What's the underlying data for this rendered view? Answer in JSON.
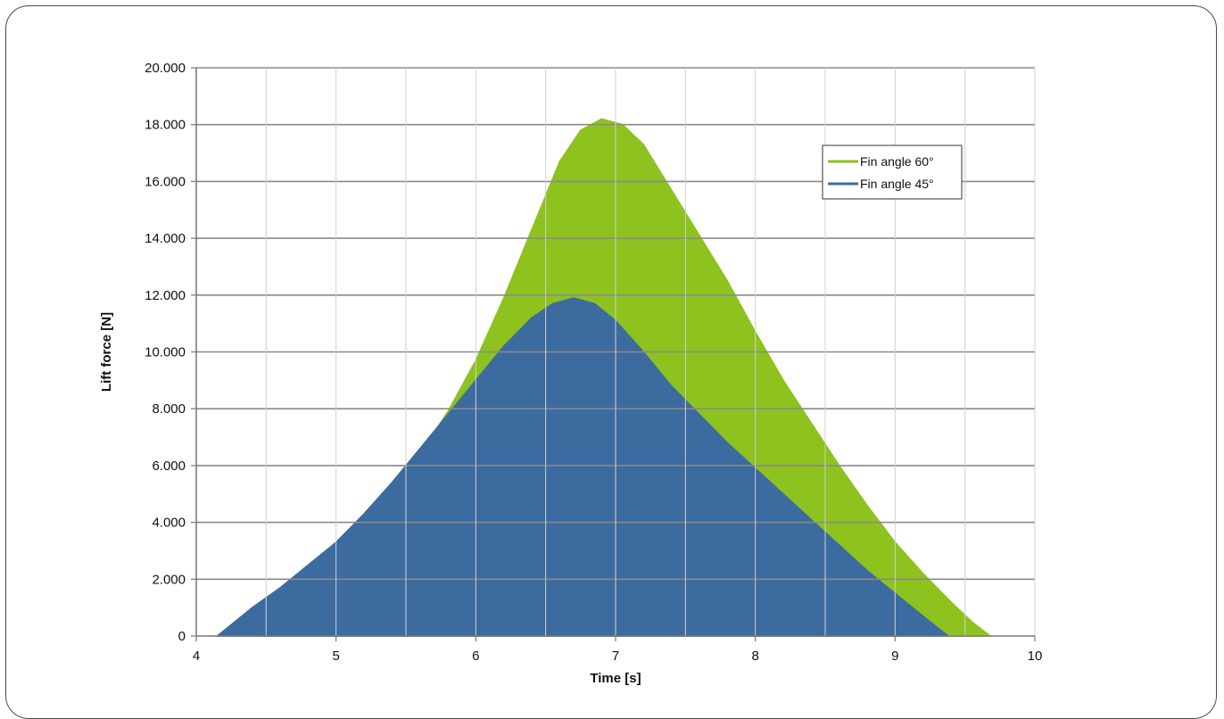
{
  "chart_data": {
    "type": "area",
    "xlabel": "Time  [s]",
    "ylabel": "Lift force [N]",
    "xlim": [
      4,
      10
    ],
    "ylim": [
      0,
      20000
    ],
    "x_ticks": [
      4,
      5,
      6,
      7,
      8,
      9,
      10
    ],
    "x_tick_labels": [
      "4",
      "5",
      "6",
      "7",
      "8",
      "9",
      "10"
    ],
    "y_ticks": [
      0,
      2000,
      4000,
      6000,
      8000,
      10000,
      12000,
      14000,
      16000,
      18000,
      20000
    ],
    "y_tick_labels": [
      "0",
      "2.000",
      "4.000",
      "6.000",
      "8.000",
      "10.000",
      "12.000",
      "14.000",
      "16.000",
      "18.000",
      "20.000"
    ],
    "grid": true,
    "legend_position": "top-right",
    "series": [
      {
        "name": "Fin angle 60°",
        "color": "#8DC21F",
        "points": [
          [
            4.47,
            0
          ],
          [
            4.6,
            800
          ],
          [
            4.8,
            1800
          ],
          [
            5.0,
            2800
          ],
          [
            5.2,
            3900
          ],
          [
            5.4,
            5100
          ],
          [
            5.6,
            6400
          ],
          [
            5.8,
            7900
          ],
          [
            6.0,
            9700
          ],
          [
            6.2,
            11900
          ],
          [
            6.4,
            14300
          ],
          [
            6.6,
            16700
          ],
          [
            6.75,
            17800
          ],
          [
            6.9,
            18200
          ],
          [
            7.05,
            18000
          ],
          [
            7.2,
            17300
          ],
          [
            7.4,
            15700
          ],
          [
            7.6,
            14100
          ],
          [
            7.8,
            12500
          ],
          [
            8.0,
            10700
          ],
          [
            8.2,
            9000
          ],
          [
            8.4,
            7500
          ],
          [
            8.6,
            6000
          ],
          [
            8.8,
            4600
          ],
          [
            9.0,
            3300
          ],
          [
            9.2,
            2200
          ],
          [
            9.4,
            1200
          ],
          [
            9.55,
            500
          ],
          [
            9.68,
            0
          ]
        ]
      },
      {
        "name": "Fin angle 45°",
        "color": "#3C6BA0",
        "points": [
          [
            4.15,
            0
          ],
          [
            4.4,
            1000
          ],
          [
            4.6,
            1700
          ],
          [
            4.8,
            2500
          ],
          [
            5.0,
            3300
          ],
          [
            5.2,
            4300
          ],
          [
            5.4,
            5400
          ],
          [
            5.6,
            6600
          ],
          [
            5.8,
            7800
          ],
          [
            6.0,
            9000
          ],
          [
            6.2,
            10200
          ],
          [
            6.4,
            11200
          ],
          [
            6.55,
            11700
          ],
          [
            6.7,
            11900
          ],
          [
            6.85,
            11700
          ],
          [
            7.0,
            11100
          ],
          [
            7.2,
            10000
          ],
          [
            7.4,
            8800
          ],
          [
            7.6,
            7800
          ],
          [
            7.8,
            6800
          ],
          [
            8.0,
            5900
          ],
          [
            8.2,
            5000
          ],
          [
            8.4,
            4100
          ],
          [
            8.6,
            3200
          ],
          [
            8.8,
            2300
          ],
          [
            9.0,
            1500
          ],
          [
            9.2,
            700
          ],
          [
            9.38,
            0
          ]
        ]
      }
    ]
  }
}
